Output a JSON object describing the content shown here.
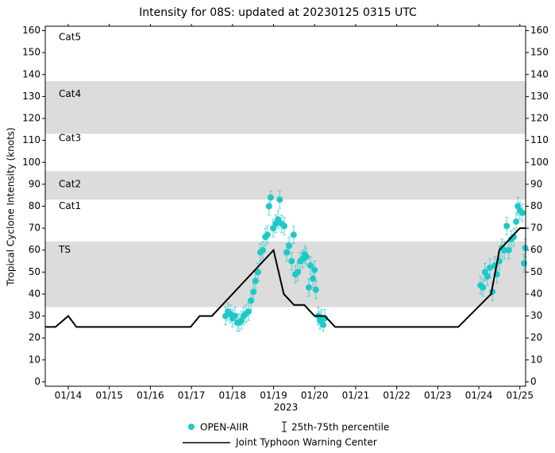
{
  "chart_data": {
    "type": "scatter",
    "title": "Intensity for 08S: updated at 20230125 0315 UTC",
    "xlabel": "2023",
    "ylabel": "Tropical Cyclone Intensity (knots)",
    "xlim": [
      13.44,
      25.14
    ],
    "ylim": [
      -2,
      162
    ],
    "xticks": [
      {
        "value": 14,
        "label": "01/14"
      },
      {
        "value": 15,
        "label": "01/15"
      },
      {
        "value": 16,
        "label": "01/16"
      },
      {
        "value": 17,
        "label": "01/17"
      },
      {
        "value": 18,
        "label": "01/18"
      },
      {
        "value": 19,
        "label": "01/19"
      },
      {
        "value": 20,
        "label": "01/20"
      },
      {
        "value": 21,
        "label": "01/21"
      },
      {
        "value": 22,
        "label": "01/22"
      },
      {
        "value": 23,
        "label": "01/23"
      },
      {
        "value": 24,
        "label": "01/24"
      },
      {
        "value": 25,
        "label": "01/25"
      }
    ],
    "yticks": [
      0,
      10,
      20,
      30,
      40,
      50,
      60,
      70,
      80,
      90,
      100,
      110,
      120,
      130,
      140,
      150,
      160
    ],
    "intensity_bands": [
      {
        "label": "TS",
        "label_y": 60,
        "range": [
          34,
          64
        ],
        "shaded": true
      },
      {
        "label": "Cat1",
        "label_y": 80,
        "range": [
          64,
          83
        ],
        "shaded": false
      },
      {
        "label": "Cat2",
        "label_y": 90,
        "range": [
          83,
          96
        ],
        "shaded": true
      },
      {
        "label": "Cat3",
        "label_y": 111,
        "range": [
          96,
          113
        ],
        "shaded": false
      },
      {
        "label": "Cat4",
        "label_y": 131,
        "range": [
          113,
          137
        ],
        "shaded": true
      },
      {
        "label": "Cat5",
        "label_y": 157,
        "range": [
          137,
          162
        ],
        "shaded": false
      }
    ],
    "band_color": "#dcdcdc",
    "percentile_label": "25th-75th percentile",
    "series": [
      {
        "name": "OPEN-AIIR",
        "color": "#1ec8c8",
        "kind": "points",
        "x": [
          17.83,
          17.89,
          17.95,
          18.0,
          18.06,
          18.12,
          18.16,
          18.22,
          18.27,
          18.33,
          18.39,
          18.45,
          18.51,
          18.56,
          18.62,
          18.68,
          18.74,
          18.8,
          18.85,
          18.89,
          18.93,
          18.99,
          19.05,
          19.11,
          19.15,
          19.2,
          19.26,
          19.32,
          19.38,
          19.44,
          19.49,
          19.53,
          19.59,
          19.65,
          19.71,
          19.76,
          19.8,
          19.86,
          19.9,
          19.96,
          20.0,
          20.03,
          20.09,
          20.13,
          20.17,
          20.21,
          20.25,
          24.04,
          24.1,
          24.15,
          24.21,
          24.27,
          24.33,
          24.39,
          24.44,
          24.5,
          24.56,
          24.62,
          24.68,
          24.73,
          24.79,
          24.85,
          24.91,
          24.95,
          25.0,
          25.06,
          25.1,
          25.13
        ],
        "values": [
          30,
          32,
          31,
          29,
          30,
          27,
          27,
          28,
          30,
          31,
          32,
          37,
          41,
          46,
          50,
          59,
          60,
          66,
          67,
          80,
          84,
          70,
          72,
          74,
          83,
          72,
          71,
          59,
          62,
          55,
          67,
          49,
          50,
          55,
          56,
          58,
          57,
          43,
          53,
          47,
          51,
          42,
          30,
          28,
          29,
          26,
          29,
          44,
          43,
          50,
          48,
          52,
          41,
          53,
          49,
          55,
          61,
          60,
          71,
          60,
          65,
          66,
          73,
          80,
          78,
          77,
          54,
          61
        ],
        "lower": [
          26,
          28,
          27,
          25,
          26,
          23,
          23,
          24,
          26,
          27,
          28,
          33,
          37,
          42,
          46,
          55,
          56,
          62,
          63,
          76,
          80,
          66,
          68,
          70,
          79,
          68,
          67,
          55,
          58,
          51,
          63,
          45,
          46,
          51,
          52,
          54,
          53,
          39,
          49,
          43,
          47,
          38,
          26,
          24,
          25,
          23,
          25,
          40,
          39,
          46,
          44,
          48,
          37,
          49,
          45,
          51,
          57,
          56,
          67,
          56,
          61,
          62,
          69,
          76,
          74,
          73,
          50,
          57
        ],
        "upper": [
          34,
          36,
          35,
          33,
          34,
          31,
          31,
          32,
          34,
          35,
          36,
          41,
          45,
          50,
          54,
          63,
          64,
          70,
          71,
          84,
          87,
          74,
          76,
          78,
          87,
          76,
          75,
          63,
          66,
          59,
          71,
          53,
          54,
          59,
          60,
          62,
          61,
          47,
          57,
          51,
          55,
          46,
          34,
          32,
          33,
          30,
          33,
          48,
          47,
          54,
          52,
          56,
          45,
          57,
          53,
          59,
          65,
          64,
          75,
          64,
          69,
          70,
          77,
          84,
          82,
          81,
          58,
          65
        ]
      },
      {
        "name": "Joint Typhoon Warning Center",
        "color": "#000000",
        "kind": "line",
        "x": [
          13.44,
          13.69,
          14.0,
          14.2,
          16.98,
          17.2,
          17.5,
          19.0,
          19.25,
          19.5,
          19.75,
          20.0,
          20.25,
          20.5,
          23.5,
          24.3,
          24.5,
          24.75,
          25.0,
          25.14
        ],
        "values": [
          25,
          25,
          30,
          25,
          25,
          30,
          30,
          60,
          40,
          35,
          35,
          30,
          30,
          25,
          25,
          40,
          60,
          65,
          70,
          70
        ]
      }
    ]
  }
}
